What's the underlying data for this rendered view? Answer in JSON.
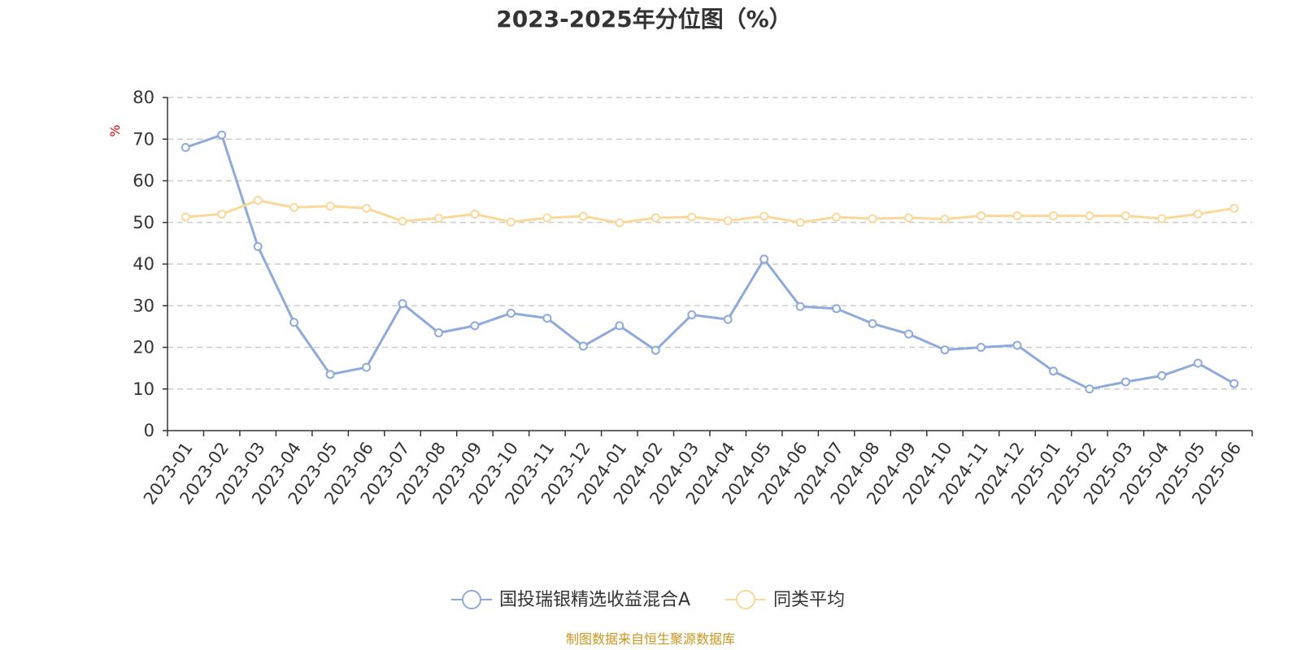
{
  "chart_data": {
    "type": "line",
    "title": "2023-2025年分位图（%）",
    "ylabel": "%",
    "ylim": [
      0,
      80
    ],
    "yticks": [
      0,
      10,
      20,
      30,
      40,
      50,
      60,
      70,
      80
    ],
    "grid": true,
    "legend_position": "bottom-center",
    "categories": [
      "2023-01",
      "2023-02",
      "2023-03",
      "2023-04",
      "2023-05",
      "2023-06",
      "2023-07",
      "2023-08",
      "2023-09",
      "2023-10",
      "2023-11",
      "2023-12",
      "2024-01",
      "2024-02",
      "2024-03",
      "2024-04",
      "2024-05",
      "2024-06",
      "2024-07",
      "2024-08",
      "2024-09",
      "2024-10",
      "2024-11",
      "2024-12",
      "2025-01",
      "2025-02",
      "2025-03",
      "2025-04",
      "2025-05",
      "2025-06"
    ],
    "series": [
      {
        "name": "国投瑞银精选收益混合A",
        "color": "#8eaadb",
        "values": [
          68.0,
          71.0,
          44.2,
          26.0,
          13.5,
          15.2,
          30.5,
          23.5,
          25.2,
          28.2,
          27.0,
          20.3,
          25.2,
          19.3,
          27.8,
          26.7,
          41.2,
          29.8,
          29.3,
          25.7,
          23.2,
          19.4,
          20.0,
          20.5,
          14.3,
          10.0,
          11.7,
          13.2,
          16.2,
          11.3
        ]
      },
      {
        "name": "同类平均",
        "color": "#f9d89a",
        "values": [
          51.3,
          52.0,
          55.3,
          53.6,
          53.9,
          53.4,
          50.3,
          51.0,
          52.0,
          50.1,
          51.1,
          51.5,
          49.9,
          51.1,
          51.3,
          50.4,
          51.5,
          50.0,
          51.3,
          50.9,
          51.1,
          50.8,
          51.6,
          51.6,
          51.6,
          51.6,
          51.6,
          50.9,
          52.0,
          53.4
        ]
      }
    ]
  },
  "source_text": "制图数据来自恒生聚源数据库",
  "colors": {
    "axis": "#333333",
    "grid": "#cccccc",
    "unit": "#e00000",
    "source": "#c8961e"
  }
}
